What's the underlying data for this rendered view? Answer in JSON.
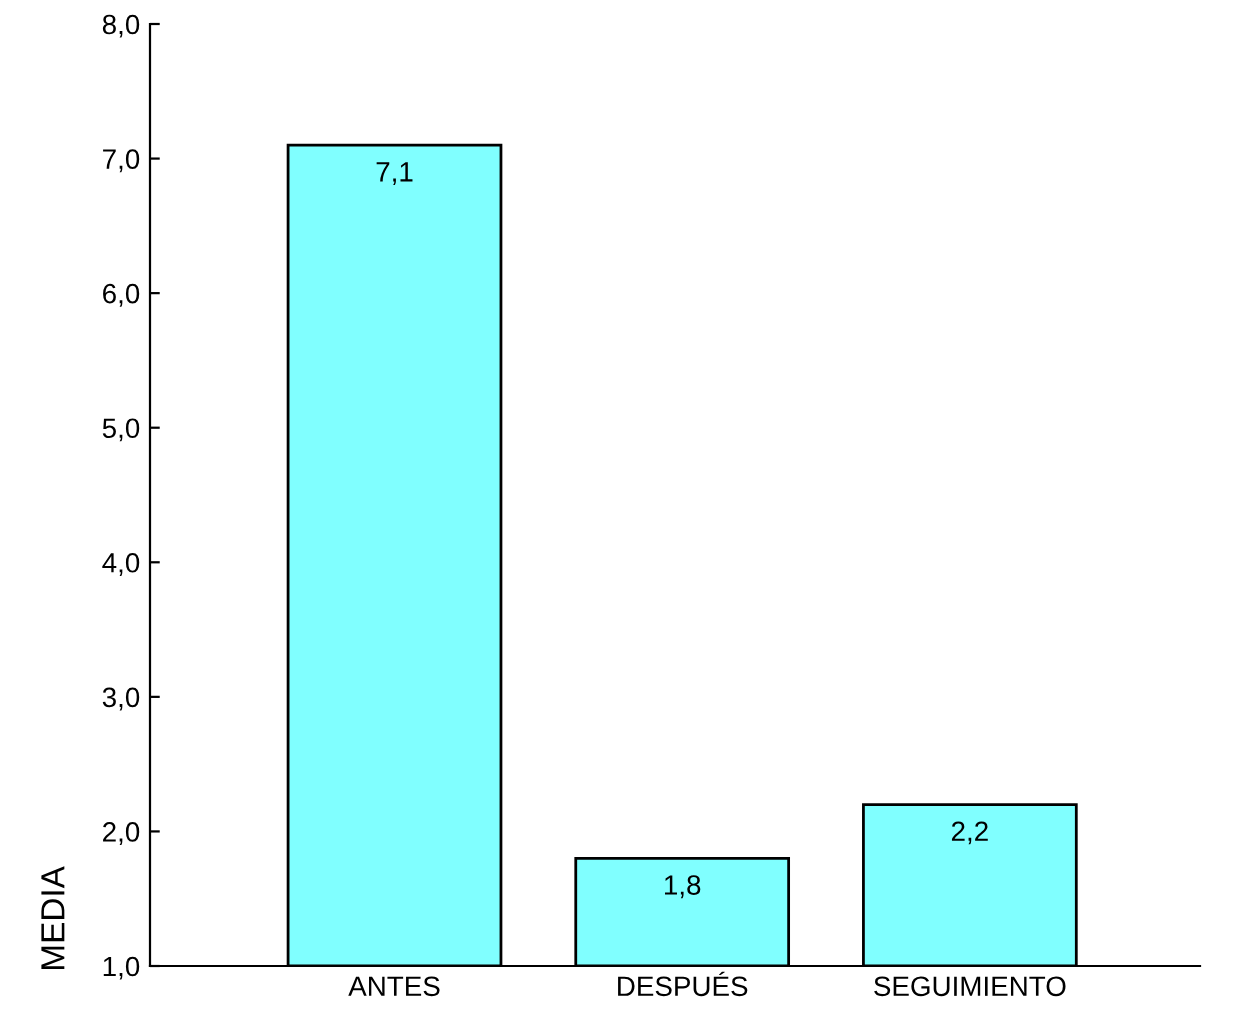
{
  "chart_data": {
    "type": "bar",
    "ylabel": "MEDIA",
    "categories": [
      "ANTES",
      "DESPUÉS",
      "SEGUIMIENTO"
    ],
    "values": [
      7.1,
      1.8,
      2.2
    ],
    "color": "#80ffff",
    "value_labels": [
      "7,1",
      "1,8",
      "2,2"
    ],
    "ylim": [
      1,
      8
    ],
    "yticks": [
      {
        "value": 1,
        "label": "1,0"
      },
      {
        "value": 2,
        "label": "2,0"
      },
      {
        "value": 3,
        "label": "3,0"
      },
      {
        "value": 4,
        "label": "4,0"
      },
      {
        "value": 5,
        "label": "5,0"
      },
      {
        "value": 6,
        "label": "6,0"
      },
      {
        "value": 7,
        "label": "7,0"
      },
      {
        "value": 8,
        "label": "8,0"
      }
    ],
    "grid": false,
    "legend": false
  }
}
